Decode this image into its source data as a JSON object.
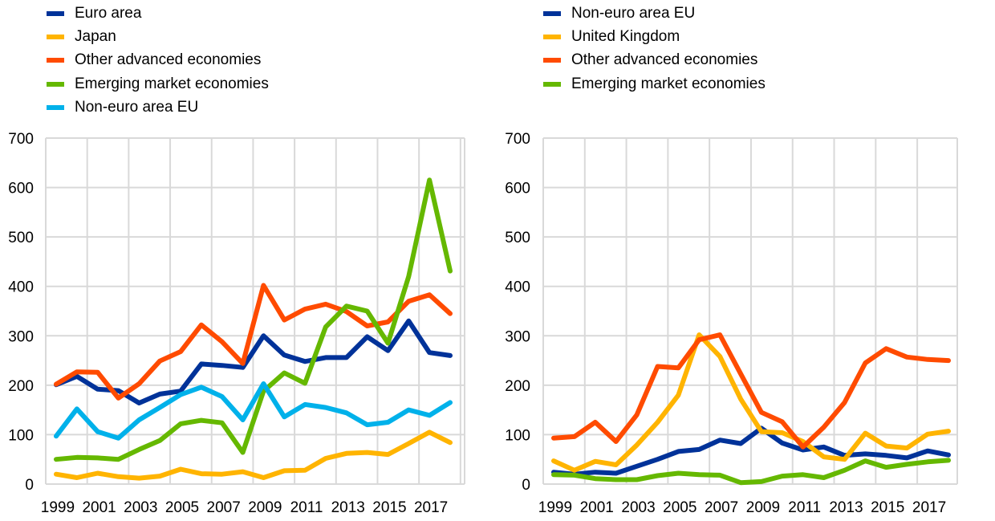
{
  "chart_data": [
    {
      "type": "line",
      "title": "",
      "xlabel": "",
      "ylabel": "",
      "ylim": [
        0,
        700
      ],
      "yticks": [
        0,
        100,
        200,
        300,
        400,
        500,
        600,
        700
      ],
      "x": [
        1999,
        2000,
        2001,
        2002,
        2003,
        2004,
        2005,
        2006,
        2007,
        2008,
        2009,
        2010,
        2011,
        2012,
        2013,
        2014,
        2015,
        2016,
        2017,
        2018
      ],
      "xtick_labels": [
        "1999",
        "2001",
        "2003",
        "2005",
        "2007",
        "2009",
        "2011",
        "2013",
        "2015",
        "2017"
      ],
      "grid": true,
      "legend_position": "top-left",
      "series": [
        {
          "name": "Euro area",
          "color": "#003299",
          "values": [
            201,
            218,
            192,
            189,
            164,
            182,
            188,
            243,
            240,
            236,
            300,
            261,
            248,
            256,
            256,
            298,
            270,
            330,
            266,
            260
          ]
        },
        {
          "name": "Japan",
          "color": "#FFB400",
          "values": [
            20,
            13,
            22,
            15,
            12,
            16,
            30,
            21,
            20,
            25,
            13,
            27,
            28,
            52,
            62,
            64,
            60,
            82,
            105,
            84
          ]
        },
        {
          "name": "Other advanced economies",
          "color": "#FF4B00",
          "values": [
            202,
            227,
            226,
            174,
            203,
            249,
            268,
            322,
            288,
            244,
            402,
            332,
            354,
            364,
            349,
            320,
            328,
            370,
            383,
            345
          ]
        },
        {
          "name": "Emerging market economies",
          "color": "#65B800",
          "values": [
            50,
            54,
            53,
            50,
            70,
            88,
            122,
            129,
            124,
            64,
            188,
            225,
            204,
            318,
            360,
            350,
            285,
            420,
            615,
            431
          ]
        },
        {
          "name": "Non-euro area EU",
          "color": "#00B1EA",
          "values": [
            97,
            152,
            106,
            93,
            130,
            155,
            181,
            196,
            177,
            130,
            203,
            136,
            161,
            155,
            144,
            120,
            125,
            150,
            139,
            165
          ]
        }
      ]
    },
    {
      "type": "line",
      "title": "",
      "xlabel": "",
      "ylabel": "",
      "ylim": [
        0,
        700
      ],
      "yticks": [
        0,
        100,
        200,
        300,
        400,
        500,
        600,
        700
      ],
      "x": [
        1999,
        2000,
        2001,
        2002,
        2003,
        2004,
        2005,
        2006,
        2007,
        2008,
        2009,
        2010,
        2011,
        2012,
        2013,
        2014,
        2015,
        2016,
        2017,
        2018
      ],
      "xtick_labels": [
        "1999",
        "2001",
        "2003",
        "2005",
        "2007",
        "2009",
        "2011",
        "2013",
        "2015",
        "2017"
      ],
      "grid": true,
      "legend_position": "top-left",
      "series": [
        {
          "name": "Non-euro area EU",
          "color": "#003299",
          "values": [
            24,
            20,
            24,
            22,
            36,
            50,
            66,
            70,
            89,
            82,
            113,
            83,
            69,
            75,
            58,
            61,
            58,
            53,
            67,
            59
          ]
        },
        {
          "name": "United Kingdom",
          "color": "#FFB400",
          "values": [
            47,
            28,
            46,
            39,
            79,
            125,
            180,
            302,
            258,
            172,
            106,
            104,
            86,
            55,
            50,
            103,
            77,
            73,
            101,
            107
          ]
        },
        {
          "name": "Other advanced economies",
          "color": "#FF4B00",
          "values": [
            93,
            96,
            125,
            86,
            140,
            238,
            235,
            292,
            302,
            223,
            145,
            126,
            75,
            115,
            165,
            245,
            274,
            257,
            252,
            250
          ]
        },
        {
          "name": "Emerging market economies",
          "color": "#65B800",
          "values": [
            19,
            18,
            11,
            9,
            9,
            17,
            22,
            19,
            18,
            3,
            5,
            16,
            19,
            13,
            28,
            47,
            34,
            40,
            45,
            48
          ]
        }
      ]
    }
  ]
}
